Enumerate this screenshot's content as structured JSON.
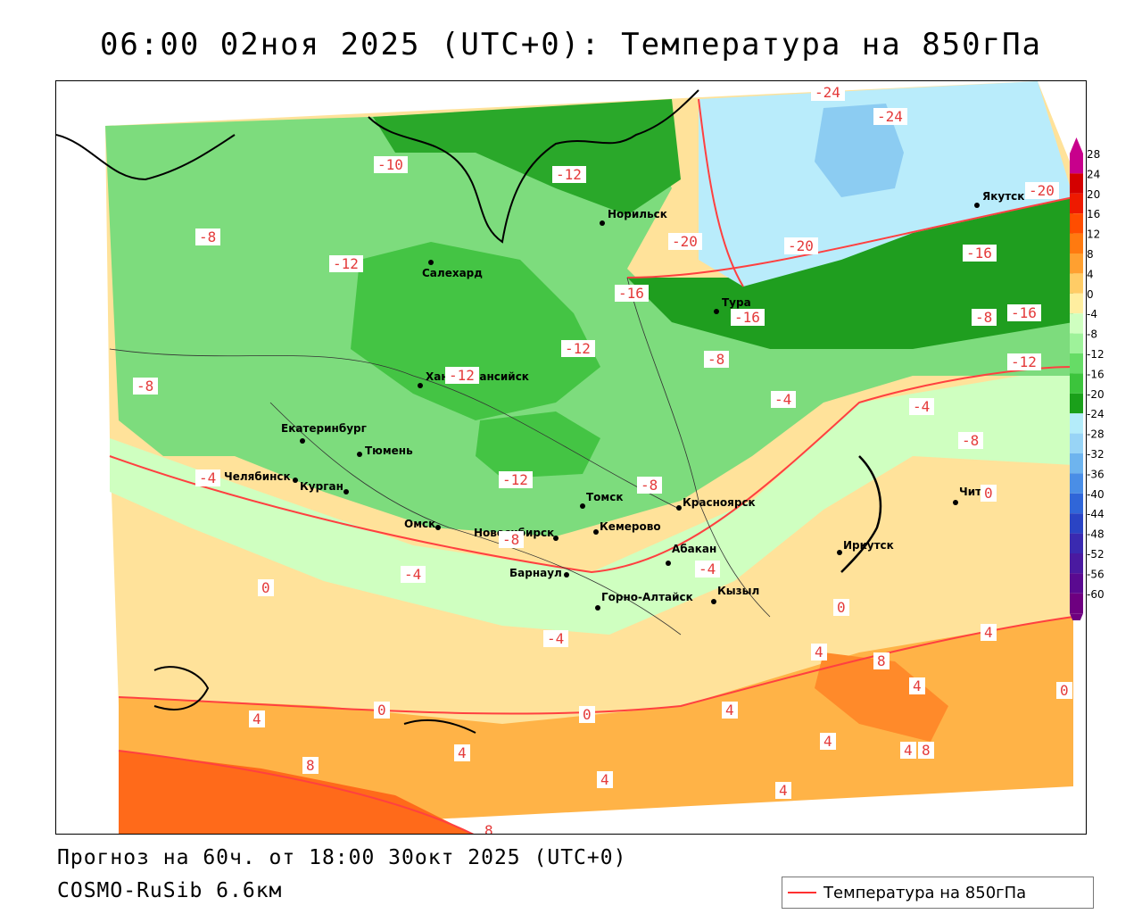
{
  "title": "06:00 02ноя 2025 (UTC+0): Температура на 850гПа",
  "footer": {
    "forecast": "Прогноз на 60ч. от 18:00 30окт 2025 (UTC+0)",
    "model": "COSMO-RuSib 6.6км"
  },
  "legend": {
    "label": "Температура на 850гПа",
    "line_color": "#ff3030"
  },
  "colorbar": {
    "ticks": [
      "28",
      "24",
      "20",
      "16",
      "12",
      "8",
      "4",
      "0",
      "-4",
      "-8",
      "-12",
      "-16",
      "-20",
      "-24",
      "-28",
      "-32",
      "-36",
      "-40",
      "-44",
      "-48",
      "-52",
      "-56",
      "-60"
    ],
    "colors": [
      "#c8008c",
      "#d40000",
      "#ee1a00",
      "#ff4d00",
      "#ff7a10",
      "#ffa030",
      "#ffcc66",
      "#ffeea0",
      "#cfffc0",
      "#9ef29a",
      "#66dc66",
      "#3cc43c",
      "#1aa01a",
      "#b4ecfa",
      "#98d4f6",
      "#6eb4ee",
      "#4a8ee6",
      "#3066d8",
      "#2a44c4",
      "#3a2ab0",
      "#4a1aa0",
      "#5a0a90",
      "#6e0080"
    ]
  },
  "cities": [
    {
      "name": "Салехард"
    },
    {
      "name": "Норильск"
    },
    {
      "name": "Якутск"
    },
    {
      "name": "Тура"
    },
    {
      "name": "Ханты-Мансийск"
    },
    {
      "name": "Екатеринбург"
    },
    {
      "name": "Тюмень"
    },
    {
      "name": "Челябинск"
    },
    {
      "name": "Курган"
    },
    {
      "name": "Омск"
    },
    {
      "name": "Новосибирск"
    },
    {
      "name": "Томск"
    },
    {
      "name": "Кемерово"
    },
    {
      "name": "Красноярск"
    },
    {
      "name": "Барнаул"
    },
    {
      "name": "Абакан"
    },
    {
      "name": "Горно-Алтайск"
    },
    {
      "name": "Кызыл"
    },
    {
      "name": "Иркутск"
    },
    {
      "name": "Чита"
    }
  ],
  "isolines": [
    "-24",
    "-24",
    "-20",
    "-20",
    "-20",
    "-16",
    "-16",
    "-16",
    "-16",
    "-12",
    "-12",
    "-12",
    "-12",
    "-12",
    "-12",
    "-8",
    "-8",
    "-8",
    "-8",
    "-8",
    "-8",
    "-4",
    "-4",
    "-4",
    "-4",
    "-4",
    "-4",
    "0",
    "0",
    "0",
    "0",
    "0",
    "0",
    "4",
    "4",
    "4",
    "4",
    "4",
    "4",
    "4",
    "4",
    "4",
    "4",
    "8",
    "8",
    "8",
    "8",
    "-10",
    "-8"
  ],
  "colors": {
    "warm_dark": "#ff6a1a",
    "warm": "#ffb347",
    "mild": "#ffe29a",
    "cool_light": "#cfffc0",
    "green": "#5fd05f",
    "dark_green": "#2aa82a",
    "cold": "#b9ecfb",
    "contour": "#ff4040"
  }
}
